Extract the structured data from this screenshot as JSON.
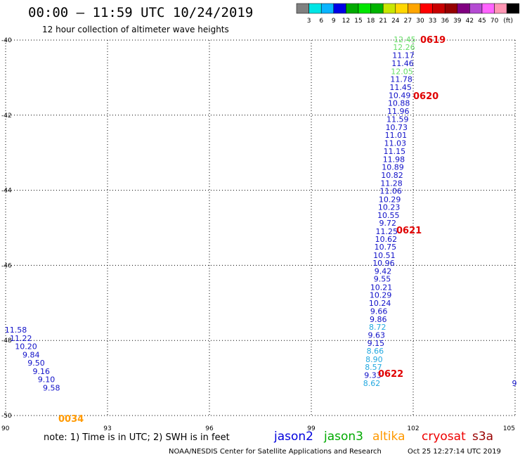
{
  "header": {
    "title": "00:00 – 11:59 UTC 10/24/2019",
    "subtitle": "12 hour collection of altimeter wave heights"
  },
  "colorbar": {
    "colors": [
      "#808080",
      "#00e5e5",
      "#0ab4ff",
      "#0000e6",
      "#00aa00",
      "#00e600",
      "#00b400",
      "#c8e600",
      "#ffd700",
      "#ffa500",
      "#ff0000",
      "#c80000",
      "#960000",
      "#800080",
      "#b44bd2",
      "#ff64ff",
      "#ff96b4",
      "#000000"
    ],
    "labels": [
      "3",
      "6",
      "9",
      "12",
      "15",
      "18",
      "21",
      "24",
      "27",
      "30",
      "33",
      "36",
      "39",
      "42",
      "45",
      "70",
      "(ft)"
    ]
  },
  "axes": {
    "x_ticks": [
      "90",
      "93",
      "96",
      "99",
      "102",
      "105"
    ],
    "y_ticks": [
      "-40",
      "-42",
      "-44",
      "-46",
      "-48",
      "-50"
    ]
  },
  "passes": [
    {
      "label": "0619",
      "color": "#e00000"
    },
    {
      "label": "0620",
      "color": "#e00000"
    },
    {
      "label": "0621",
      "color": "#e00000"
    },
    {
      "label": "0622",
      "color": "#e00000"
    },
    {
      "label": "0034",
      "color": "#ff9900"
    }
  ],
  "observations": [
    {
      "v": "12.45",
      "c": "#66dd66",
      "lon": 101.75,
      "lat": -39.98
    },
    {
      "v": "12.26",
      "c": "#66dd66",
      "lon": 101.73,
      "lat": -40.19
    },
    {
      "v": "11.17",
      "c": "#1010c8",
      "lon": 101.71,
      "lat": -40.4
    },
    {
      "v": "11.46",
      "c": "#1010c8",
      "lon": 101.69,
      "lat": -40.62
    },
    {
      "v": "12.05",
      "c": "#66dd66",
      "lon": 101.67,
      "lat": -40.83
    },
    {
      "v": "11.78",
      "c": "#1010c8",
      "lon": 101.65,
      "lat": -41.04
    },
    {
      "v": "11.45",
      "c": "#1010c8",
      "lon": 101.63,
      "lat": -41.25
    },
    {
      "v": "10.49",
      "c": "#1010c8",
      "lon": 101.6,
      "lat": -41.47
    },
    {
      "v": "10.88",
      "c": "#1010c8",
      "lon": 101.58,
      "lat": -41.68
    },
    {
      "v": "11.96",
      "c": "#1010c8",
      "lon": 101.56,
      "lat": -41.89
    },
    {
      "v": "11.59",
      "c": "#1010c8",
      "lon": 101.54,
      "lat": -42.11
    },
    {
      "v": "10.73",
      "c": "#1010c8",
      "lon": 101.51,
      "lat": -42.32
    },
    {
      "v": "11.01",
      "c": "#1010c8",
      "lon": 101.49,
      "lat": -42.53
    },
    {
      "v": "11.03",
      "c": "#1010c8",
      "lon": 101.47,
      "lat": -42.74
    },
    {
      "v": "11.15",
      "c": "#1010c8",
      "lon": 101.45,
      "lat": -42.96
    },
    {
      "v": "11.98",
      "c": "#1010c8",
      "lon": 101.43,
      "lat": -43.17
    },
    {
      "v": "10.89",
      "c": "#1010c8",
      "lon": 101.4,
      "lat": -43.38
    },
    {
      "v": "10.82",
      "c": "#1010c8",
      "lon": 101.38,
      "lat": -43.6
    },
    {
      "v": "11.28",
      "c": "#1010c8",
      "lon": 101.36,
      "lat": -43.81
    },
    {
      "v": "11.06",
      "c": "#1010c8",
      "lon": 101.34,
      "lat": -44.02
    },
    {
      "v": "10.29",
      "c": "#1010c8",
      "lon": 101.31,
      "lat": -44.24
    },
    {
      "v": "10.23",
      "c": "#1010c8",
      "lon": 101.29,
      "lat": -44.45
    },
    {
      "v": "10.55",
      "c": "#1010c8",
      "lon": 101.27,
      "lat": -44.66
    },
    {
      "v": "9.72",
      "c": "#1010c8",
      "lon": 101.25,
      "lat": -44.87
    },
    {
      "v": "11.25",
      "c": "#1010c8",
      "lon": 101.22,
      "lat": -45.09
    },
    {
      "v": "10.62",
      "c": "#1010c8",
      "lon": 101.2,
      "lat": -45.3
    },
    {
      "v": "10.75",
      "c": "#1010c8",
      "lon": 101.18,
      "lat": -45.51
    },
    {
      "v": "10.51",
      "c": "#1010c8",
      "lon": 101.15,
      "lat": -45.73
    },
    {
      "v": "10.96",
      "c": "#1010c8",
      "lon": 101.13,
      "lat": -45.94
    },
    {
      "v": "9.42",
      "c": "#1010c8",
      "lon": 101.11,
      "lat": -46.15
    },
    {
      "v": "9.55",
      "c": "#1010c8",
      "lon": 101.09,
      "lat": -46.36
    },
    {
      "v": "10.21",
      "c": "#1010c8",
      "lon": 101.06,
      "lat": -46.58
    },
    {
      "v": "10.29",
      "c": "#1010c8",
      "lon": 101.04,
      "lat": -46.79
    },
    {
      "v": "10.24",
      "c": "#1010c8",
      "lon": 101.02,
      "lat": -47.0
    },
    {
      "v": "9.66",
      "c": "#1010c8",
      "lon": 100.99,
      "lat": -47.22
    },
    {
      "v": "9.86",
      "c": "#1010c8",
      "lon": 100.97,
      "lat": -47.43
    },
    {
      "v": "8.72",
      "c": "#22a8e0",
      "lon": 100.95,
      "lat": -47.64
    },
    {
      "v": "9.63",
      "c": "#1010c8",
      "lon": 100.92,
      "lat": -47.86
    },
    {
      "v": "9.15",
      "c": "#1010c8",
      "lon": 100.9,
      "lat": -48.07
    },
    {
      "v": "8.66",
      "c": "#22a8e0",
      "lon": 100.88,
      "lat": -48.28
    },
    {
      "v": "8.90",
      "c": "#22a8e0",
      "lon": 100.85,
      "lat": -48.5
    },
    {
      "v": "8.57",
      "c": "#22a8e0",
      "lon": 100.83,
      "lat": -48.71
    },
    {
      "v": "9.33",
      "c": "#1010c8",
      "lon": 100.81,
      "lat": -48.92
    },
    {
      "v": "8.62",
      "c": "#22a8e0",
      "lon": 100.78,
      "lat": -49.14
    },
    {
      "v": "11.58",
      "c": "#1010c8",
      "lon": 90.3,
      "lat": -47.72
    },
    {
      "v": "11.22",
      "c": "#1010c8",
      "lon": 90.45,
      "lat": -47.94
    },
    {
      "v": "10.20",
      "c": "#1010c8",
      "lon": 90.6,
      "lat": -48.16
    },
    {
      "v": "9.84",
      "c": "#1010c8",
      "lon": 90.75,
      "lat": -48.38
    },
    {
      "v": "9.50",
      "c": "#1010c8",
      "lon": 90.9,
      "lat": -48.6
    },
    {
      "v": "9.16",
      "c": "#1010c8",
      "lon": 91.05,
      "lat": -48.82
    },
    {
      "v": "9.10",
      "c": "#1010c8",
      "lon": 91.2,
      "lat": -49.04
    },
    {
      "v": "9.58",
      "c": "#1010c8",
      "lon": 91.35,
      "lat": -49.26
    },
    {
      "v": "9",
      "c": "#1010c8",
      "lon": 104.98,
      "lat": -49.14
    }
  ],
  "legend": {
    "note": "note: 1) Time is in UTC; 2) SWH is in feet",
    "satellites": [
      {
        "name": "jason2",
        "color": "#0000dd"
      },
      {
        "name": "jason3",
        "color": "#00aa00"
      },
      {
        "name": "altika",
        "color": "#ff9900"
      },
      {
        "name": "cryosat",
        "color": "#ee0000"
      },
      {
        "name": "s3a",
        "color": "#990000"
      }
    ]
  },
  "footer": {
    "credit": "NOAA/NESDIS Center for Satellite Applications and Research",
    "timestamp": "Oct 25 12:27:14 UTC 2019"
  }
}
